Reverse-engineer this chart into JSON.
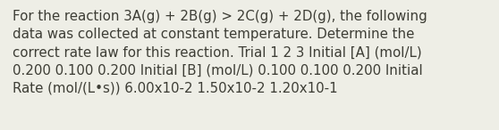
{
  "text": "For the reaction 3A(g) + 2B(g) > 2C(g) + 2D(g), the following\ndata was collected at constant temperature. Determine the\ncorrect rate law for this reaction. Trial 1 2 3 Initial [A] (mol/L)\n0.200 0.100 0.200 Initial [B] (mol/L) 0.100 0.100 0.200 Initial\nRate (mol/(L•s)) 6.00x10-2 1.50x10-2 1.20x10-1",
  "background_color": "#eeeee6",
  "text_color": "#3d3d35",
  "font_size": 10.8,
  "fig_width": 5.58,
  "fig_height": 1.46,
  "dpi": 100
}
